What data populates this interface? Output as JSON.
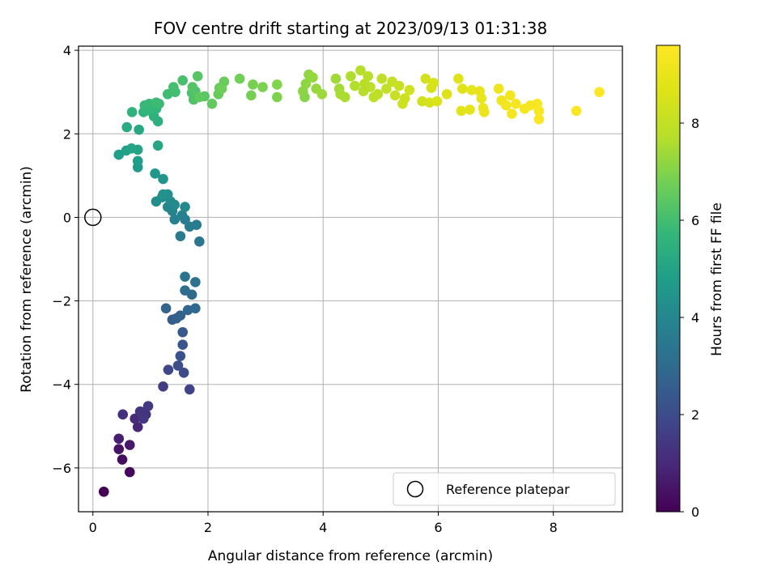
{
  "chart_data": {
    "type": "scatter",
    "title": "FOV centre drift starting at 2023/09/13 01:31:38",
    "xlabel": "Angular distance from reference (arcmin)",
    "ylabel": "Rotation from reference (arcmin)",
    "xlim": [
      -0.25,
      9.2
    ],
    "ylim": [
      -7.05,
      4.1
    ],
    "xticks": [
      0,
      2,
      4,
      6,
      8
    ],
    "yticks": [
      -6,
      -4,
      -2,
      0,
      2,
      4
    ],
    "xtick_labels": [
      "0",
      "2",
      "4",
      "6",
      "8"
    ],
    "ytick_labels": [
      "−6",
      "−4",
      "−2",
      "0",
      "2",
      "4"
    ],
    "grid": true,
    "legend_position": "lower-right",
    "legend_label": "Reference platepar",
    "colormap": "viridis",
    "colorbar": {
      "label": "Hours from first FF file",
      "range": [
        0,
        9.6
      ],
      "ticks": [
        0,
        2,
        4,
        6,
        8
      ],
      "tick_labels": [
        "0",
        "2",
        "4",
        "6",
        "8"
      ]
    },
    "reference_point": {
      "x": 0,
      "y": 0
    },
    "series": [
      {
        "points": [
          [
            0.19,
            -6.57,
            0.0
          ],
          [
            0.64,
            -6.1,
            0.15
          ],
          [
            0.51,
            -5.8,
            0.3
          ],
          [
            0.45,
            -5.55,
            0.45
          ],
          [
            0.64,
            -5.45,
            0.6
          ],
          [
            0.45,
            -5.3,
            0.75
          ],
          [
            0.78,
            -5.02,
            0.9
          ],
          [
            0.73,
            -4.82,
            1.05
          ],
          [
            0.52,
            -4.72,
            1.15
          ],
          [
            0.92,
            -4.72,
            1.25
          ],
          [
            0.82,
            -4.65,
            1.35
          ],
          [
            0.96,
            -4.52,
            1.45
          ],
          [
            0.88,
            -4.82,
            1.4
          ],
          [
            1.22,
            -4.05,
            1.6
          ],
          [
            1.68,
            -4.12,
            1.75
          ],
          [
            1.31,
            -3.65,
            1.9
          ],
          [
            1.58,
            -3.72,
            2.0
          ],
          [
            1.48,
            -3.55,
            2.1
          ],
          [
            1.52,
            -3.32,
            2.2
          ],
          [
            1.56,
            -3.05,
            2.3
          ],
          [
            1.56,
            -2.75,
            2.4
          ],
          [
            1.38,
            -2.45,
            2.5
          ],
          [
            1.45,
            -2.42,
            2.6
          ],
          [
            1.52,
            -2.35,
            2.7
          ],
          [
            1.27,
            -2.18,
            2.75
          ],
          [
            1.65,
            -2.22,
            2.85
          ],
          [
            1.78,
            -2.18,
            2.9
          ],
          [
            1.72,
            -1.85,
            3.0
          ],
          [
            1.6,
            -1.75,
            3.1
          ],
          [
            1.78,
            -1.55,
            3.2
          ],
          [
            1.6,
            -1.42,
            3.3
          ],
          [
            1.85,
            -0.58,
            3.4
          ],
          [
            1.52,
            -0.45,
            3.5
          ],
          [
            1.68,
            -0.22,
            3.55
          ],
          [
            1.8,
            -0.18,
            3.6
          ],
          [
            1.6,
            -0.05,
            3.7
          ],
          [
            1.42,
            -0.05,
            3.75
          ],
          [
            1.55,
            0.05,
            3.85
          ],
          [
            1.38,
            0.15,
            3.9
          ],
          [
            1.3,
            0.25,
            3.95
          ],
          [
            1.6,
            0.25,
            4.05
          ],
          [
            1.42,
            0.3,
            4.1
          ],
          [
            1.35,
            0.38,
            4.15
          ],
          [
            1.1,
            0.38,
            4.2
          ],
          [
            1.2,
            0.48,
            4.3
          ],
          [
            1.3,
            0.55,
            4.35
          ],
          [
            1.22,
            0.55,
            4.4
          ],
          [
            1.22,
            0.92,
            4.5
          ],
          [
            1.08,
            1.05,
            4.6
          ],
          [
            0.78,
            1.2,
            4.7
          ],
          [
            0.78,
            1.35,
            4.8
          ],
          [
            0.45,
            1.5,
            4.85
          ],
          [
            0.58,
            1.6,
            4.95
          ],
          [
            0.78,
            1.62,
            5.0
          ],
          [
            0.67,
            1.65,
            5.05
          ],
          [
            1.13,
            1.72,
            5.1
          ],
          [
            0.8,
            2.1,
            5.2
          ],
          [
            0.59,
            2.16,
            5.3
          ],
          [
            1.13,
            2.3,
            5.4
          ],
          [
            1.06,
            2.42,
            5.5
          ],
          [
            0.68,
            2.52,
            5.55
          ],
          [
            0.88,
            2.52,
            5.6
          ],
          [
            1.0,
            2.55,
            5.65
          ],
          [
            1.1,
            2.6,
            5.7
          ],
          [
            0.9,
            2.68,
            5.75
          ],
          [
            0.98,
            2.72,
            5.8
          ],
          [
            1.15,
            2.72,
            5.85
          ],
          [
            1.1,
            2.75,
            5.9
          ],
          [
            1.3,
            2.95,
            5.95
          ],
          [
            1.43,
            3.0,
            6.0
          ],
          [
            1.4,
            3.12,
            6.05
          ],
          [
            1.56,
            3.28,
            6.1
          ],
          [
            1.72,
            2.98,
            6.15
          ],
          [
            1.75,
            2.82,
            6.2
          ],
          [
            1.78,
            3.02,
            6.25
          ],
          [
            1.73,
            3.12,
            6.3
          ],
          [
            1.82,
            3.38,
            6.35
          ],
          [
            1.94,
            2.9,
            6.4
          ],
          [
            1.85,
            2.88,
            6.45
          ],
          [
            2.07,
            2.72,
            6.5
          ],
          [
            2.2,
            3.1,
            6.55
          ],
          [
            2.18,
            2.95,
            6.6
          ],
          [
            2.28,
            3.25,
            6.65
          ],
          [
            2.24,
            3.08,
            6.7
          ],
          [
            2.55,
            3.32,
            6.75
          ],
          [
            2.75,
            2.92,
            6.8
          ],
          [
            2.78,
            3.18,
            6.85
          ],
          [
            2.95,
            3.12,
            6.9
          ],
          [
            3.2,
            2.88,
            6.95
          ],
          [
            3.2,
            3.18,
            7.0
          ],
          [
            3.68,
            2.88,
            7.05
          ],
          [
            3.65,
            3.02,
            7.1
          ],
          [
            3.7,
            3.2,
            7.15
          ],
          [
            3.75,
            3.42,
            7.2
          ],
          [
            3.82,
            3.35,
            7.25
          ],
          [
            3.88,
            3.08,
            7.3
          ],
          [
            3.98,
            2.95,
            7.35
          ],
          [
            4.22,
            3.32,
            7.4
          ],
          [
            4.28,
            3.08,
            7.45
          ],
          [
            4.3,
            2.95,
            7.5
          ],
          [
            4.38,
            2.88,
            7.55
          ],
          [
            4.48,
            3.38,
            7.6
          ],
          [
            4.55,
            3.15,
            7.65
          ],
          [
            4.65,
            3.52,
            7.7
          ],
          [
            4.7,
            3.02,
            7.72
          ],
          [
            4.72,
            3.2,
            7.75
          ],
          [
            4.78,
            3.38,
            7.78
          ],
          [
            4.82,
            3.12,
            7.8
          ],
          [
            4.88,
            2.88,
            7.85
          ],
          [
            4.95,
            2.95,
            7.9
          ],
          [
            5.02,
            3.32,
            7.95
          ],
          [
            5.1,
            3.08,
            8.0
          ],
          [
            5.2,
            3.25,
            8.05
          ],
          [
            5.25,
            2.92,
            8.1
          ],
          [
            5.32,
            3.15,
            8.15
          ],
          [
            5.38,
            2.72,
            8.2
          ],
          [
            5.42,
            2.85,
            8.25
          ],
          [
            5.5,
            3.05,
            8.3
          ],
          [
            5.72,
            2.78,
            8.35
          ],
          [
            5.78,
            3.32,
            8.4
          ],
          [
            5.85,
            2.75,
            8.45
          ],
          [
            5.88,
            3.1,
            8.5
          ],
          [
            5.92,
            3.22,
            8.55
          ],
          [
            5.98,
            2.78,
            8.6
          ],
          [
            6.15,
            2.95,
            8.65
          ],
          [
            6.35,
            3.32,
            8.7
          ],
          [
            6.42,
            3.08,
            8.75
          ],
          [
            6.4,
            2.55,
            8.8
          ],
          [
            6.55,
            2.58,
            8.85
          ],
          [
            6.58,
            3.05,
            8.9
          ],
          [
            6.72,
            3.02,
            8.95
          ],
          [
            6.75,
            2.85,
            9.0
          ],
          [
            6.78,
            2.62,
            9.05
          ],
          [
            6.8,
            2.52,
            9.1
          ],
          [
            7.05,
            3.08,
            9.15
          ],
          [
            7.1,
            2.8,
            9.2
          ],
          [
            7.18,
            2.68,
            9.25
          ],
          [
            7.25,
            2.92,
            9.28
          ],
          [
            7.28,
            2.48,
            9.3
          ],
          [
            7.35,
            2.72,
            9.33
          ],
          [
            7.5,
            2.6,
            9.36
          ],
          [
            7.6,
            2.68,
            9.4
          ],
          [
            7.72,
            2.72,
            9.45
          ],
          [
            7.75,
            2.55,
            9.48
          ],
          [
            7.75,
            2.35,
            9.5
          ],
          [
            8.4,
            2.55,
            9.55
          ],
          [
            8.8,
            3.0,
            9.6
          ]
        ]
      }
    ]
  }
}
